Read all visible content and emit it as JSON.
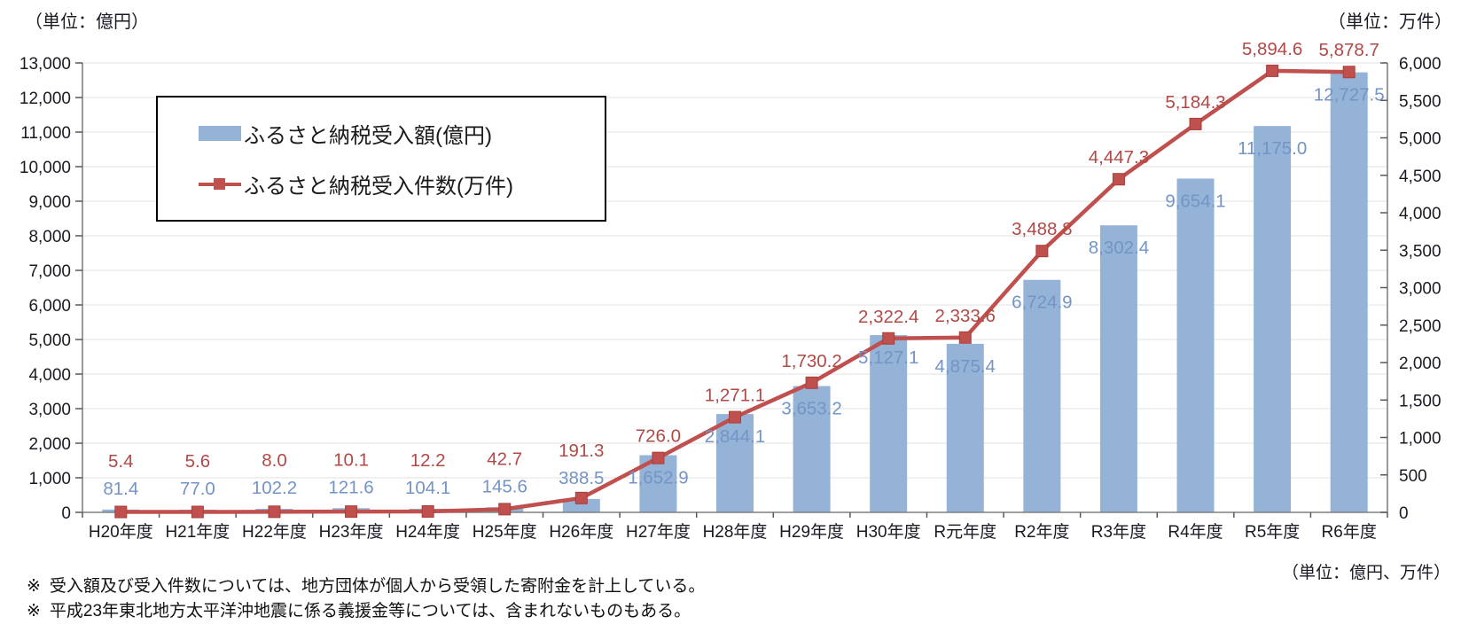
{
  "units": {
    "left": "（単位：億円）",
    "right": "（単位：万件）",
    "bottom": "（単位：億円、万件）"
  },
  "legend": [
    {
      "label": "ふるさと納税受入額(億円)",
      "swatch": "bar-swatch"
    },
    {
      "label": "ふるさと納税受入件数(万件)",
      "swatch": "line-swatch"
    }
  ],
  "notes": [
    {
      "marker": "※",
      "text": "受入額及び受入件数については、地方団体が個人から受領した寄附金を計上している。"
    },
    {
      "marker": "※",
      "text": "平成23年東北地方太平洋沖地震に係る義援金等については、含まれないものもある。"
    }
  ],
  "colors": {
    "bar": "#95B3D7",
    "line": "#C0504D",
    "marker_stroke": "#A83F3C",
    "bar_label": "#7394C5",
    "line_label": "#B04A47",
    "grid": "#E6E6E6",
    "axis": "#808080",
    "tick": "#595959",
    "axis_text": "#1A1A24"
  },
  "chart_data": {
    "type": "bar",
    "subtype": "bar-line-combo",
    "categories": [
      "H20年度",
      "H21年度",
      "H22年度",
      "H23年度",
      "H24年度",
      "H25年度",
      "H26年度",
      "H27年度",
      "H28年度",
      "H29年度",
      "H30年度",
      "R元年度",
      "R2年度",
      "R3年度",
      "R4年度",
      "R5年度",
      "R6年度"
    ],
    "series": [
      {
        "name": "ふるさと納税受入額(億円)",
        "type": "bar",
        "axis": "left",
        "values": [
          81.4,
          77.0,
          102.2,
          121.6,
          104.1,
          145.6,
          388.5,
          1652.9,
          2844.1,
          3653.2,
          5127.1,
          4875.4,
          6724.9,
          8302.4,
          9654.1,
          11175.0,
          12727.5
        ]
      },
      {
        "name": "ふるさと納税受入件数(万件)",
        "type": "line",
        "axis": "right",
        "values": [
          5.4,
          5.6,
          8.0,
          10.1,
          12.2,
          42.7,
          191.3,
          726.0,
          1271.1,
          1730.2,
          2322.4,
          2333.6,
          3488.8,
          4447.3,
          5184.3,
          5894.6,
          5878.7
        ]
      }
    ],
    "left_axis": {
      "min": 0,
      "max": 13000,
      "step": 1000,
      "unit": "億円"
    },
    "right_axis": {
      "min": 0,
      "max": 6000,
      "step": 500,
      "unit": "万件"
    },
    "grid": true,
    "legend_position": "top-left-inside",
    "data_labels": true
  }
}
